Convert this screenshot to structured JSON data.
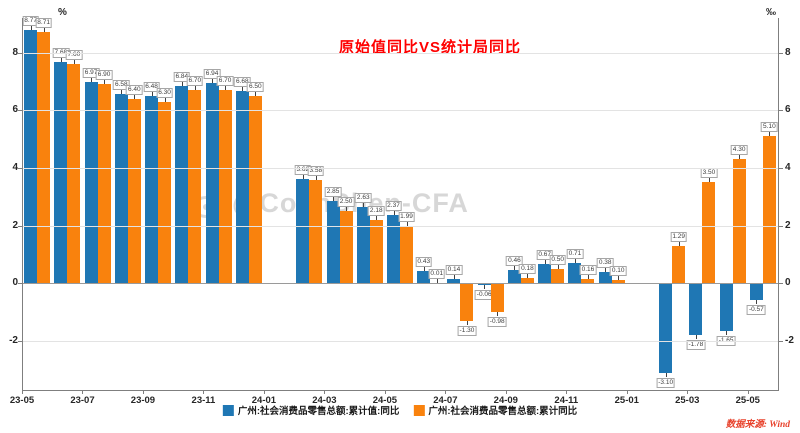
{
  "title": {
    "text": "原始值同比VS统计局同比"
  },
  "watermark": {
    "icon": "weibo-icon",
    "text": "@ColinShen-CFA"
  },
  "footer": {
    "source_label": "数据来源: Wind"
  },
  "axes": {
    "left_unit": "%",
    "right_unit": "‰",
    "y_ticks": [
      8,
      6,
      4,
      2,
      0,
      -2
    ]
  },
  "legend": [
    {
      "label": "广州:社会消费品零售总额:累计值:同比",
      "color": "#1f77b4"
    },
    {
      "label": "广州:社会消费品零售总额:累计同比",
      "color": "#f9820d"
    }
  ],
  "chart_data": {
    "type": "bar",
    "title": "原始值同比VS统计局同比",
    "categories": [
      "23-05",
      "23-06",
      "23-07",
      "23-08",
      "23-09",
      "23-10",
      "23-11",
      "23-12",
      "24-01",
      "24-02",
      "24-03",
      "24-04",
      "24-05",
      "24-06",
      "24-07",
      "24-08",
      "24-09",
      "24-10",
      "24-11",
      "24-12",
      "25-01",
      "25-02",
      "25-03",
      "25-04",
      "25-05"
    ],
    "x_tick_labels": [
      "23-05",
      "23-07",
      "23-09",
      "23-11",
      "24-01",
      "24-03",
      "24-05",
      "24-07",
      "24-09",
      "24-11",
      "25-01",
      "25-03",
      "25-05"
    ],
    "series": [
      {
        "name": "广州:社会消费品零售总额:累计值:同比",
        "color": "#1f77b4",
        "values": [
          8.77,
          7.68,
          6.97,
          6.58,
          6.48,
          6.84,
          6.94,
          6.68,
          null,
          3.62,
          2.85,
          2.63,
          2.37,
          0.43,
          0.14,
          -0.06,
          0.46,
          0.67,
          0.71,
          0.38,
          null,
          -3.1,
          -1.78,
          -1.65,
          -0.57
        ]
      },
      {
        "name": "广州:社会消费品零售总额:累计同比",
        "color": "#f9820d",
        "values": [
          8.71,
          7.6,
          6.9,
          6.4,
          6.3,
          6.7,
          6.7,
          6.5,
          null,
          3.58,
          2.5,
          2.18,
          1.99,
          0.01,
          -1.3,
          -0.98,
          0.18,
          0.5,
          0.16,
          0.1,
          null,
          1.29,
          3.5,
          4.3,
          5.1
        ]
      }
    ],
    "ylim": [
      -3.7,
      9.2
    ],
    "gridlines": [
      8,
      6,
      4,
      2,
      -2
    ],
    "grid": true,
    "legend_position": "bottom",
    "data_labels": true
  }
}
